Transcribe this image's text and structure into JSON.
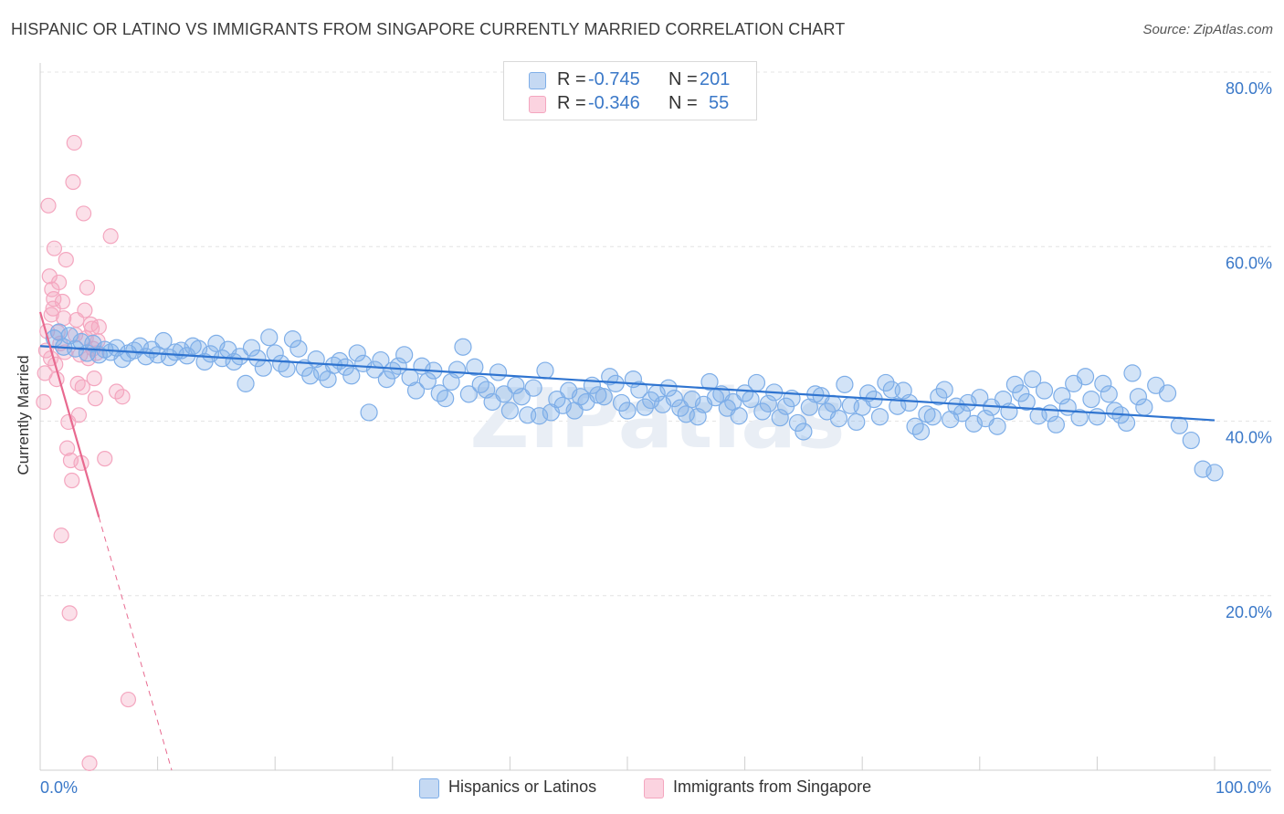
{
  "title": "HISPANIC OR LATINO VS IMMIGRANTS FROM SINGAPORE CURRENTLY MARRIED CORRELATION CHART",
  "source": "Source: ZipAtlas.com",
  "watermark": "ZIPatlas",
  "legend": {
    "series1": {
      "r_label": "R =",
      "r_value": "-0.745",
      "n_label": "N =",
      "n_value": "201"
    },
    "series2": {
      "r_label": "R =",
      "r_value": "-0.346",
      "n_label": "N =",
      "n_value": "55"
    }
  },
  "bottom_legend": {
    "series1": "Hispanics or Latinos",
    "series2": "Immigrants from Singapore"
  },
  "chart_data": {
    "type": "scatter",
    "title": "HISPANIC OR LATINO VS IMMIGRANTS FROM SINGAPORE CURRENTLY MARRIED CORRELATION CHART",
    "xlabel": "",
    "ylabel": "Currently Married",
    "xlim": [
      0,
      100
    ],
    "ylim": [
      0,
      80
    ],
    "x_tick_labels": [
      "0.0%",
      "100.0%"
    ],
    "y_ticks": [
      20,
      40,
      60,
      80
    ],
    "y_tick_labels": [
      "20.0%",
      "40.0%",
      "60.0%",
      "80.0%"
    ],
    "colors": {
      "series1": "#7eaee8",
      "series1_line": "#2f74d0",
      "series2": "#f4a6bf",
      "series2_line": "#e8698f",
      "axis_text": "#3a78c8"
    },
    "series": [
      {
        "name": "Hispanics or Latinos",
        "trend": {
          "x0": 0,
          "y0": 48.6,
          "x1": 100,
          "y1": 40.1
        },
        "points": [
          [
            1.2,
            49.5
          ],
          [
            1.6,
            50.2
          ],
          [
            2,
            48.5
          ],
          [
            2.5,
            49.8
          ],
          [
            3,
            48.3
          ],
          [
            3.5,
            49.1
          ],
          [
            4,
            47.8
          ],
          [
            4.5,
            48.9
          ],
          [
            5,
            47.6
          ],
          [
            5.5,
            48.2
          ],
          [
            6,
            47.9
          ],
          [
            6.5,
            48.4
          ],
          [
            7,
            47.1
          ],
          [
            7.5,
            47.8
          ],
          [
            8,
            48.1
          ],
          [
            8.5,
            48.6
          ],
          [
            9,
            47.4
          ],
          [
            9.5,
            48.2
          ],
          [
            10,
            47.6
          ],
          [
            10.5,
            49.2
          ],
          [
            11,
            47.3
          ],
          [
            11.5,
            47.9
          ],
          [
            12,
            48.1
          ],
          [
            12.5,
            47.5
          ],
          [
            13,
            48.6
          ],
          [
            13.5,
            48.3
          ],
          [
            14,
            46.8
          ],
          [
            14.5,
            47.7
          ],
          [
            15,
            48.9
          ],
          [
            15.5,
            47.2
          ],
          [
            16,
            48.2
          ],
          [
            16.5,
            46.8
          ],
          [
            17,
            47.4
          ],
          [
            17.5,
            44.3
          ],
          [
            18,
            48.4
          ],
          [
            18.5,
            47.2
          ],
          [
            19,
            46.1
          ],
          [
            19.5,
            49.6
          ],
          [
            20,
            47.8
          ],
          [
            20.5,
            46.6
          ],
          [
            21,
            46
          ],
          [
            21.5,
            49.4
          ],
          [
            22,
            48.3
          ],
          [
            22.5,
            46.1
          ],
          [
            23,
            45.2
          ],
          [
            23.5,
            47.1
          ],
          [
            24,
            45.6
          ],
          [
            24.5,
            44.8
          ],
          [
            25,
            46.4
          ],
          [
            25.5,
            46.9
          ],
          [
            26,
            46.2
          ],
          [
            26.5,
            45.2
          ],
          [
            27,
            47.8
          ],
          [
            27.5,
            46.6
          ],
          [
            28,
            41
          ],
          [
            28.5,
            45.9
          ],
          [
            29,
            47
          ],
          [
            29.5,
            44.8
          ],
          [
            30,
            45.8
          ],
          [
            30.5,
            46.3
          ],
          [
            31,
            47.6
          ],
          [
            31.5,
            45
          ],
          [
            32,
            43.5
          ],
          [
            32.5,
            46.3
          ],
          [
            33,
            44.6
          ],
          [
            33.5,
            45.8
          ],
          [
            34,
            43.2
          ],
          [
            34.5,
            42.6
          ],
          [
            35,
            44.5
          ],
          [
            35.5,
            45.9
          ],
          [
            36,
            48.5
          ],
          [
            36.5,
            43.1
          ],
          [
            37,
            46.2
          ],
          [
            37.5,
            44.2
          ],
          [
            38,
            43.6
          ],
          [
            38.5,
            42.2
          ],
          [
            39,
            45.6
          ],
          [
            39.5,
            43.1
          ],
          [
            40,
            41.2
          ],
          [
            40.5,
            44.1
          ],
          [
            41,
            42.8
          ],
          [
            41.5,
            40.7
          ],
          [
            42,
            43.8
          ],
          [
            42.5,
            40.6
          ],
          [
            43,
            45.8
          ],
          [
            43.5,
            41
          ],
          [
            44,
            42.5
          ],
          [
            44.5,
            41.8
          ],
          [
            45,
            43.5
          ],
          [
            45.5,
            41.2
          ],
          [
            46,
            42.8
          ],
          [
            46.5,
            42.2
          ],
          [
            47,
            44.1
          ],
          [
            47.5,
            43
          ],
          [
            48,
            42.8
          ],
          [
            48.5,
            45.1
          ],
          [
            49,
            44.3
          ],
          [
            49.5,
            42.1
          ],
          [
            50,
            41.2
          ],
          [
            50.5,
            44.8
          ],
          [
            51,
            43.6
          ],
          [
            51.5,
            41.6
          ],
          [
            52,
            42.4
          ],
          [
            52.5,
            43.2
          ],
          [
            53,
            41.9
          ],
          [
            53.5,
            43.8
          ],
          [
            54,
            42.6
          ],
          [
            54.5,
            41.5
          ],
          [
            55,
            40.8
          ],
          [
            55.5,
            42.5
          ],
          [
            56,
            40.5
          ],
          [
            56.5,
            41.9
          ],
          [
            57,
            44.5
          ],
          [
            57.5,
            42.7
          ],
          [
            58,
            43.1
          ],
          [
            58.5,
            41.5
          ],
          [
            59,
            42.2
          ],
          [
            59.5,
            40.6
          ],
          [
            60,
            43.2
          ],
          [
            60.5,
            42.5
          ],
          [
            61,
            44.4
          ],
          [
            61.5,
            41.1
          ],
          [
            62,
            42
          ],
          [
            62.5,
            43.3
          ],
          [
            63,
            40.4
          ],
          [
            63.5,
            41.7
          ],
          [
            64,
            42.6
          ],
          [
            64.5,
            39.8
          ],
          [
            65,
            38.8
          ],
          [
            65.5,
            41.6
          ],
          [
            66,
            43.1
          ],
          [
            66.5,
            42.9
          ],
          [
            67,
            41.1
          ],
          [
            67.5,
            42
          ],
          [
            68,
            40.3
          ],
          [
            68.5,
            44.2
          ],
          [
            69,
            41.8
          ],
          [
            69.5,
            39.9
          ],
          [
            70,
            41.6
          ],
          [
            70.5,
            43.2
          ],
          [
            71,
            42.5
          ],
          [
            71.5,
            40.5
          ],
          [
            72,
            44.4
          ],
          [
            72.5,
            43.6
          ],
          [
            73,
            41.7
          ],
          [
            73.5,
            43.5
          ],
          [
            74,
            42.1
          ],
          [
            74.5,
            39.4
          ],
          [
            75,
            38.8
          ],
          [
            75.5,
            40.8
          ],
          [
            76,
            40.5
          ],
          [
            76.5,
            42.8
          ],
          [
            77,
            43.6
          ],
          [
            77.5,
            40.2
          ],
          [
            78,
            41.7
          ],
          [
            78.5,
            40.9
          ],
          [
            79,
            42.1
          ],
          [
            79.5,
            39.7
          ],
          [
            80,
            42.7
          ],
          [
            80.5,
            40.3
          ],
          [
            81,
            41.6
          ],
          [
            81.5,
            39.4
          ],
          [
            82,
            42.5
          ],
          [
            82.5,
            41.1
          ],
          [
            83,
            44.2
          ],
          [
            83.5,
            43.2
          ],
          [
            84,
            42.2
          ],
          [
            84.5,
            44.8
          ],
          [
            85,
            40.6
          ],
          [
            85.5,
            43.5
          ],
          [
            86,
            40.9
          ],
          [
            86.5,
            39.6
          ],
          [
            87,
            42.9
          ],
          [
            87.5,
            41.6
          ],
          [
            88,
            44.3
          ],
          [
            88.5,
            40.4
          ],
          [
            89,
            45.1
          ],
          [
            89.5,
            42.5
          ],
          [
            90,
            40.5
          ],
          [
            90.5,
            44.3
          ],
          [
            91,
            43.1
          ],
          [
            91.5,
            41.2
          ],
          [
            92,
            40.7
          ],
          [
            92.5,
            39.8
          ],
          [
            93,
            45.5
          ],
          [
            93.5,
            42.8
          ],
          [
            94,
            41.6
          ],
          [
            95,
            44.1
          ],
          [
            96,
            43.2
          ],
          [
            97,
            39.5
          ],
          [
            98,
            37.8
          ],
          [
            99,
            34.5
          ],
          [
            100,
            34.1
          ]
        ]
      },
      {
        "name": "Immigrants from Singapore",
        "trend": {
          "x0": 0,
          "y0": 52.5,
          "x1": 5.0,
          "y1": 29.0,
          "dash_x1": 11.2,
          "dash_y1": 0
        },
        "points": [
          [
            0.3,
            42.2
          ],
          [
            0.4,
            45.5
          ],
          [
            0.5,
            48.1
          ],
          [
            0.6,
            50.3
          ],
          [
            0.7,
            64.7
          ],
          [
            0.8,
            56.6
          ],
          [
            0.9,
            47.2
          ],
          [
            1.0,
            55.1
          ],
          [
            1.1,
            52.9
          ],
          [
            1.2,
            59.8
          ],
          [
            1.3,
            46.5
          ],
          [
            1.4,
            44.8
          ],
          [
            1.5,
            50.2
          ],
          [
            1.6,
            55.9
          ],
          [
            1.7,
            48.9
          ],
          [
            1.8,
            26.9
          ],
          [
            1.9,
            53.7
          ],
          [
            2.0,
            51.8
          ],
          [
            2.1,
            47.9
          ],
          [
            2.2,
            58.5
          ],
          [
            2.3,
            36.9
          ],
          [
            2.4,
            39.9
          ],
          [
            2.5,
            18.0
          ],
          [
            2.6,
            35.5
          ],
          [
            2.7,
            33.2
          ],
          [
            2.8,
            67.4
          ],
          [
            2.9,
            71.9
          ],
          [
            3.0,
            49.9
          ],
          [
            3.1,
            51.6
          ],
          [
            3.2,
            44.3
          ],
          [
            3.3,
            40.7
          ],
          [
            3.4,
            47.6
          ],
          [
            3.5,
            35.2
          ],
          [
            3.6,
            43.9
          ],
          [
            3.7,
            63.8
          ],
          [
            3.8,
            52.7
          ],
          [
            3.9,
            49.5
          ],
          [
            4.0,
            55.3
          ],
          [
            4.1,
            47.2
          ],
          [
            4.2,
            0.8
          ],
          [
            4.3,
            51.1
          ],
          [
            4.4,
            50.6
          ],
          [
            4.5,
            48.3
          ],
          [
            4.6,
            44.9
          ],
          [
            4.7,
            42.6
          ],
          [
            4.8,
            47.8
          ],
          [
            4.9,
            49.2
          ],
          [
            5.0,
            50.8
          ],
          [
            5.5,
            35.7
          ],
          [
            6.0,
            61.2
          ],
          [
            6.5,
            43.4
          ],
          [
            7,
            42.8
          ],
          [
            7.5,
            8.1
          ],
          [
            1.15,
            54.0
          ],
          [
            0.95,
            52.2
          ]
        ]
      }
    ]
  }
}
